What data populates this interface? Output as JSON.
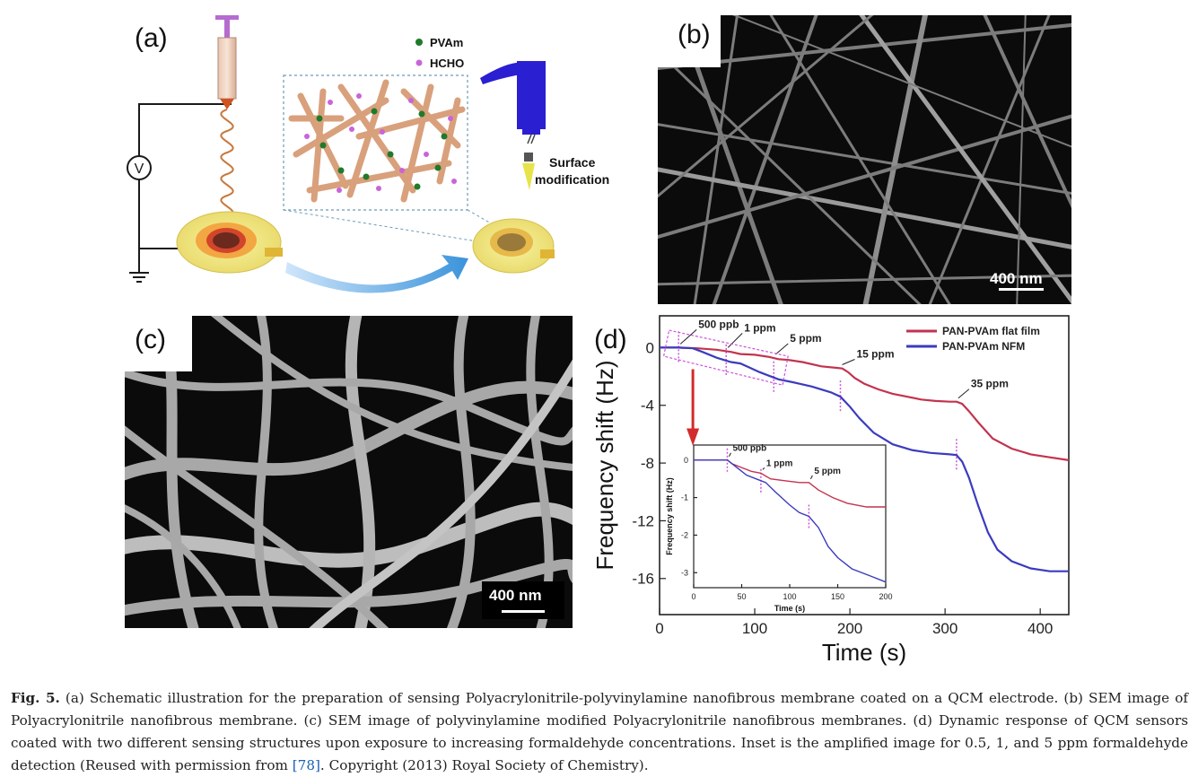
{
  "panel_a": {
    "label": "(a)",
    "legend_pvam": "PVAm",
    "legend_hcho": "HCHO",
    "voltage_symbol": "V",
    "surface_mod_line1": "Surface",
    "surface_mod_line2": "modification"
  },
  "panel_b": {
    "label": "(b)",
    "scale": "400 nm"
  },
  "panel_c": {
    "label": "(c)",
    "scale": "400 nm"
  },
  "panel_d": {
    "label": "(d)"
  },
  "chart_data": [
    {
      "type": "line",
      "xlabel": "Time (s)",
      "ylabel": "Frequency shift (Hz)",
      "xlim": [
        0,
        430
      ],
      "ylim": [
        -18.5,
        2.2
      ],
      "xticks": [
        0,
        100,
        200,
        300,
        400
      ],
      "yticks": [
        0,
        -4,
        -8,
        -12,
        -16
      ],
      "legend_position": "top-right",
      "series": [
        {
          "name": "PAN-PVAm flat film",
          "color": "#c2334f",
          "x": [
            0,
            20,
            40,
            60,
            75,
            85,
            100,
            115,
            125,
            135,
            150,
            170,
            185,
            192,
            198,
            205,
            215,
            230,
            245,
            260,
            275,
            290,
            305,
            312,
            318,
            325,
            335,
            350,
            370,
            390,
            410,
            430
          ],
          "y": [
            0,
            0,
            -0.05,
            -0.15,
            -0.3,
            -0.45,
            -0.5,
            -0.65,
            -0.8,
            -0.85,
            -1.0,
            -1.3,
            -1.4,
            -1.45,
            -1.7,
            -2.1,
            -2.5,
            -2.9,
            -3.2,
            -3.4,
            -3.6,
            -3.7,
            -3.75,
            -3.75,
            -3.9,
            -4.4,
            -5.2,
            -6.3,
            -7.0,
            -7.4,
            -7.6,
            -7.8
          ]
        },
        {
          "name": "PAN-PVAm NFM",
          "color": "#3b3bbf",
          "x": [
            0,
            20,
            35,
            45,
            60,
            75,
            85,
            95,
            105,
            115,
            125,
            140,
            160,
            180,
            190,
            200,
            210,
            225,
            245,
            265,
            285,
            305,
            312,
            318,
            325,
            335,
            345,
            355,
            370,
            390,
            410,
            430
          ],
          "y": [
            0,
            0,
            -0.05,
            -0.3,
            -0.7,
            -1.0,
            -1.1,
            -1.4,
            -1.7,
            -1.95,
            -2.2,
            -2.4,
            -2.7,
            -3.1,
            -3.4,
            -4.1,
            -4.9,
            -5.9,
            -6.7,
            -7.1,
            -7.3,
            -7.4,
            -7.45,
            -7.9,
            -9.0,
            -11.0,
            -12.8,
            -14.0,
            -14.8,
            -15.3,
            -15.5,
            -15.5
          ]
        }
      ],
      "annotations": [
        {
          "text": "500 ppb",
          "x": 20
        },
        {
          "text": "1 ppm",
          "x": 70
        },
        {
          "text": "5 ppm",
          "x": 120
        },
        {
          "text": "15 ppm",
          "x": 190
        },
        {
          "text": "35 ppm",
          "x": 312
        }
      ]
    },
    {
      "type": "line",
      "xlabel": "Time (s)",
      "ylabel": "Frequency shift (Hz)",
      "xlim": [
        0,
        200
      ],
      "ylim": [
        -3.4,
        0.4
      ],
      "xticks": [
        0,
        50,
        100,
        150,
        200
      ],
      "yticks": [
        0,
        -1,
        -2,
        -3
      ],
      "series": [
        {
          "color": "#c2334f",
          "x": [
            0,
            20,
            35,
            40,
            50,
            60,
            70,
            80,
            95,
            110,
            120,
            130,
            145,
            160,
            180,
            200
          ],
          "y": [
            0,
            0,
            0,
            -0.1,
            -0.2,
            -0.3,
            -0.35,
            -0.5,
            -0.55,
            -0.6,
            -0.6,
            -0.8,
            -1.0,
            -1.15,
            -1.25,
            -1.25
          ]
        },
        {
          "color": "#3b3bbf",
          "x": [
            0,
            20,
            35,
            45,
            55,
            65,
            75,
            85,
            100,
            110,
            120,
            130,
            140,
            150,
            165,
            185,
            200
          ],
          "y": [
            0,
            0,
            0,
            -0.2,
            -0.4,
            -0.5,
            -0.6,
            -0.85,
            -1.2,
            -1.4,
            -1.5,
            -1.8,
            -2.3,
            -2.6,
            -2.9,
            -3.1,
            -3.25
          ]
        }
      ],
      "annotations": [
        {
          "text": "500 ppb",
          "x": 35
        },
        {
          "text": "1 ppm",
          "x": 70
        },
        {
          "text": "5 ppm",
          "x": 120
        }
      ]
    }
  ],
  "caption": {
    "fig_label": "Fig. 5.",
    "text_before_ref": "(a) Schematic illustration for the preparation of sensing Polyacrylonitrile-polyvinylamine nanofibrous membrane coated on a QCM electrode. (b) SEM image of Polyacrylonitrile nanofibrous membrane. (c) SEM image of polyvinylamine modified Polyacrylonitrile nanofibrous membranes. (d) Dynamic response of QCM sensors coated with two different sensing structures upon exposure to increasing formaldehyde concentrations. Inset is the amplified image for 0.5, 1, and 5 ppm formaldehyde detection (Reused with permission from ",
    "ref": "[78]",
    "text_after_ref": ". Copyright (2013) Royal Society of Chemistry)."
  }
}
